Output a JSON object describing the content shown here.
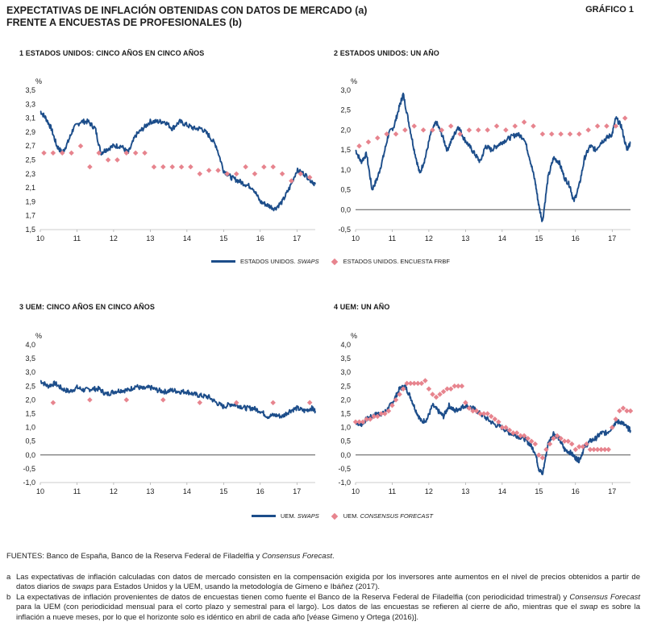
{
  "header": {
    "title_line1": "EXPECTATIVAS DE INFLACIÓN OBTENIDAS CON DATOS DE MERCADO (a)",
    "title_line2": "FRENTE A ENCUESTAS DE PROFESIONALES (b)",
    "figure_label": "GRÁFICO 1"
  },
  "colors": {
    "swaps": "#1c4d8a",
    "survey": "#e7848e",
    "zero_line": "#555555"
  },
  "legend_top": {
    "swaps_label": "ESTADOS UNIDOS. ",
    "swaps_italic": "SWAPS",
    "survey_label": "ESTADOS UNIDOS. ENCUESTA FRBF"
  },
  "legend_bottom": {
    "swaps_label": "UEM. ",
    "swaps_italic": "SWAPS",
    "survey_label": "UEM. ",
    "survey_italic": "CONSENSUS FORECAST"
  },
  "chart_data": [
    {
      "type": "line",
      "title": "1  ESTADOS UNIDOS: CINCO AÑOS EN CINCO AÑOS",
      "ylabel": "%",
      "ylim": [
        1.5,
        3.5
      ],
      "yticks": [
        1.5,
        1.7,
        1.9,
        2.1,
        2.3,
        2.5,
        2.7,
        2.9,
        3.1,
        3.3,
        3.5
      ],
      "xlim": [
        2010,
        2017.5
      ],
      "xticks": [
        "10",
        "11",
        "12",
        "13",
        "14",
        "15",
        "16",
        "17"
      ],
      "series": [
        {
          "name": "ESTADOS UNIDOS. SWAPS",
          "kind": "line",
          "x": [
            2010.0,
            2010.15,
            2010.3,
            2010.45,
            2010.6,
            2010.75,
            2010.9,
            2011.1,
            2011.3,
            2011.5,
            2011.65,
            2011.8,
            2012.0,
            2012.2,
            2012.4,
            2012.6,
            2012.8,
            2013.0,
            2013.2,
            2013.4,
            2013.6,
            2013.8,
            2014.0,
            2014.2,
            2014.4,
            2014.6,
            2014.8,
            2015.0,
            2015.2,
            2015.4,
            2015.6,
            2015.8,
            2016.0,
            2016.2,
            2016.4,
            2016.6,
            2016.8,
            2017.0,
            2017.2,
            2017.4,
            2017.5
          ],
          "y": [
            3.2,
            3.1,
            2.95,
            2.7,
            2.6,
            2.75,
            2.95,
            3.05,
            3.05,
            2.95,
            2.6,
            2.65,
            2.7,
            2.7,
            2.6,
            2.85,
            2.95,
            3.05,
            3.05,
            3.05,
            2.95,
            3.05,
            3.0,
            2.95,
            2.95,
            2.85,
            2.7,
            2.35,
            2.25,
            2.2,
            2.15,
            2.1,
            1.9,
            1.85,
            1.8,
            1.9,
            2.1,
            2.35,
            2.3,
            2.2,
            2.15
          ]
        },
        {
          "name": "ESTADOS UNIDOS. ENCUESTA FRBF",
          "kind": "points",
          "x": [
            2010.1,
            2010.35,
            2010.6,
            2010.85,
            2011.1,
            2011.35,
            2011.6,
            2011.85,
            2012.1,
            2012.35,
            2012.6,
            2012.85,
            2013.1,
            2013.35,
            2013.6,
            2013.85,
            2014.1,
            2014.35,
            2014.6,
            2014.85,
            2015.1,
            2015.35,
            2015.6,
            2015.85,
            2016.1,
            2016.35,
            2016.6,
            2016.85,
            2017.1,
            2017.35
          ],
          "y": [
            2.6,
            2.6,
            2.6,
            2.6,
            2.7,
            2.4,
            2.6,
            2.5,
            2.5,
            2.6,
            2.6,
            2.6,
            2.4,
            2.4,
            2.4,
            2.4,
            2.4,
            2.3,
            2.35,
            2.35,
            2.3,
            2.3,
            2.4,
            2.3,
            2.4,
            2.4,
            2.3,
            2.2,
            2.3,
            2.25
          ]
        }
      ]
    },
    {
      "type": "line",
      "title": "2  ESTADOS UNIDOS: UN AÑO",
      "ylabel": "%",
      "ylim": [
        -0.5,
        3.0
      ],
      "yticks": [
        -0.5,
        0.0,
        0.5,
        1.0,
        1.5,
        2.0,
        2.5,
        3.0
      ],
      "xlim": [
        2010,
        2017.5
      ],
      "xticks": [
        "10",
        "11",
        "12",
        "13",
        "14",
        "15",
        "16",
        "17"
      ],
      "series": [
        {
          "name": "ESTADOS UNIDOS. SWAPS",
          "kind": "line",
          "x": [
            2010.0,
            2010.15,
            2010.3,
            2010.45,
            2010.6,
            2010.75,
            2010.9,
            2011.05,
            2011.2,
            2011.3,
            2011.45,
            2011.6,
            2011.75,
            2011.9,
            2012.05,
            2012.2,
            2012.35,
            2012.5,
            2012.65,
            2012.8,
            2012.95,
            2013.1,
            2013.25,
            2013.4,
            2013.55,
            2013.7,
            2013.85,
            2014.0,
            2014.2,
            2014.4,
            2014.6,
            2014.75,
            2014.9,
            2015.0,
            2015.1,
            2015.25,
            2015.4,
            2015.55,
            2015.7,
            2015.85,
            2015.95,
            2016.1,
            2016.25,
            2016.4,
            2016.55,
            2016.7,
            2016.85,
            2017.0,
            2017.1,
            2017.25,
            2017.4,
            2017.5
          ],
          "y": [
            1.5,
            1.2,
            1.4,
            0.5,
            0.8,
            1.3,
            1.9,
            2.1,
            2.6,
            2.9,
            2.2,
            1.5,
            0.9,
            1.3,
            1.9,
            2.2,
            1.9,
            1.5,
            1.8,
            2.1,
            1.8,
            1.6,
            1.4,
            1.2,
            1.6,
            1.5,
            1.6,
            1.7,
            1.8,
            1.9,
            1.8,
            1.3,
            0.7,
            0.1,
            -0.3,
            0.8,
            1.3,
            1.2,
            0.8,
            0.6,
            0.2,
            0.6,
            1.3,
            1.6,
            1.5,
            1.7,
            1.8,
            1.9,
            2.3,
            2.1,
            1.5,
            1.7
          ]
        },
        {
          "name": "ESTADOS UNIDOS. ENCUESTA FRBF",
          "kind": "points",
          "x": [
            2010.1,
            2010.35,
            2010.6,
            2010.85,
            2011.1,
            2011.35,
            2011.6,
            2011.85,
            2012.1,
            2012.35,
            2012.6,
            2012.85,
            2013.1,
            2013.35,
            2013.6,
            2013.85,
            2014.1,
            2014.35,
            2014.6,
            2014.85,
            2015.1,
            2015.35,
            2015.6,
            2015.85,
            2016.1,
            2016.35,
            2016.6,
            2016.85,
            2017.1,
            2017.35
          ],
          "y": [
            1.6,
            1.7,
            1.8,
            1.9,
            1.9,
            2.0,
            2.1,
            2.0,
            2.0,
            2.0,
            2.1,
            1.9,
            2.0,
            2.0,
            2.0,
            2.1,
            2.0,
            2.1,
            2.2,
            2.1,
            1.9,
            1.9,
            1.9,
            1.9,
            1.9,
            2.0,
            2.1,
            2.1,
            2.1,
            2.3
          ]
        }
      ]
    },
    {
      "type": "line",
      "title": "3  UEM: CINCO AÑOS EN CINCO AÑOS",
      "ylabel": "%",
      "ylim": [
        -1.0,
        4.0
      ],
      "yticks": [
        -1.0,
        -0.5,
        0.0,
        0.5,
        1.0,
        1.5,
        2.0,
        2.5,
        3.0,
        3.5,
        4.0
      ],
      "xlim": [
        2010,
        2017.5
      ],
      "xticks": [
        "10",
        "11",
        "12",
        "13",
        "14",
        "15",
        "16",
        "17"
      ],
      "series": [
        {
          "name": "UEM. SWAPS",
          "kind": "line",
          "x": [
            2010.0,
            2010.2,
            2010.4,
            2010.6,
            2010.8,
            2011.0,
            2011.2,
            2011.4,
            2011.6,
            2011.8,
            2012.0,
            2012.2,
            2012.4,
            2012.6,
            2012.8,
            2013.0,
            2013.2,
            2013.4,
            2013.6,
            2013.8,
            2014.0,
            2014.2,
            2014.4,
            2014.6,
            2014.8,
            2015.0,
            2015.2,
            2015.4,
            2015.6,
            2015.8,
            2016.0,
            2016.2,
            2016.4,
            2016.6,
            2016.8,
            2017.0,
            2017.2,
            2017.4,
            2017.5
          ],
          "y": [
            2.7,
            2.5,
            2.6,
            2.4,
            2.3,
            2.45,
            2.35,
            2.4,
            2.4,
            2.2,
            2.3,
            2.35,
            2.35,
            2.5,
            2.4,
            2.45,
            2.35,
            2.3,
            2.35,
            2.3,
            2.3,
            2.2,
            2.15,
            2.1,
            1.9,
            1.75,
            1.85,
            1.8,
            1.7,
            1.7,
            1.6,
            1.4,
            1.45,
            1.4,
            1.6,
            1.7,
            1.6,
            1.7,
            1.6
          ]
        },
        {
          "name": "UEM. CONSENSUS FORECAST",
          "kind": "points",
          "x": [
            2010.35,
            2011.35,
            2012.35,
            2013.35,
            2014.35,
            2015.35,
            2016.35,
            2017.35
          ],
          "y": [
            1.9,
            2.0,
            2.0,
            2.0,
            1.9,
            1.9,
            1.9,
            1.9
          ]
        }
      ]
    },
    {
      "type": "line",
      "title": "4  UEM: UN AÑO",
      "ylabel": "%",
      "ylim": [
        -1.0,
        4.0
      ],
      "yticks": [
        -1.0,
        -0.5,
        0.0,
        0.5,
        1.0,
        1.5,
        2.0,
        2.5,
        3.0,
        3.5,
        4.0
      ],
      "xlim": [
        2010,
        2017.5
      ],
      "xticks": [
        "10",
        "11",
        "12",
        "13",
        "14",
        "15",
        "16",
        "17"
      ],
      "series": [
        {
          "name": "UEM. SWAPS",
          "kind": "line",
          "x": [
            2010.0,
            2010.15,
            2010.3,
            2010.45,
            2010.6,
            2010.75,
            2010.9,
            2011.05,
            2011.2,
            2011.35,
            2011.5,
            2011.65,
            2011.8,
            2011.95,
            2012.1,
            2012.25,
            2012.4,
            2012.55,
            2012.7,
            2012.85,
            2013.0,
            2013.2,
            2013.4,
            2013.6,
            2013.8,
            2014.0,
            2014.2,
            2014.4,
            2014.6,
            2014.75,
            2014.9,
            2015.0,
            2015.1,
            2015.25,
            2015.4,
            2015.55,
            2015.7,
            2015.85,
            2016.0,
            2016.1,
            2016.25,
            2016.4,
            2016.55,
            2016.7,
            2016.85,
            2017.0,
            2017.1,
            2017.25,
            2017.4,
            2017.5
          ],
          "y": [
            1.2,
            1.1,
            1.3,
            1.4,
            1.5,
            1.5,
            1.7,
            2.0,
            2.4,
            2.5,
            2.1,
            1.6,
            1.2,
            1.3,
            1.8,
            1.6,
            1.4,
            1.8,
            1.6,
            1.7,
            1.8,
            1.7,
            1.5,
            1.3,
            1.1,
            1.0,
            0.8,
            0.7,
            0.6,
            0.4,
            0.1,
            -0.5,
            -0.7,
            0.4,
            0.8,
            0.6,
            0.2,
            0.1,
            -0.1,
            -0.2,
            0.3,
            0.5,
            0.6,
            0.8,
            0.8,
            1.0,
            1.2,
            1.2,
            1.0,
            0.9
          ]
        },
        {
          "name": "UEM. CONSENSUS FORECAST",
          "kind": "points",
          "x": [
            2010.0,
            2010.1,
            2010.2,
            2010.3,
            2010.4,
            2010.5,
            2010.6,
            2010.7,
            2010.8,
            2010.9,
            2011.0,
            2011.1,
            2011.2,
            2011.3,
            2011.4,
            2011.5,
            2011.6,
            2011.7,
            2011.8,
            2011.9,
            2012.0,
            2012.1,
            2012.2,
            2012.3,
            2012.4,
            2012.5,
            2012.6,
            2012.7,
            2012.8,
            2012.9,
            2013.0,
            2013.1,
            2013.2,
            2013.3,
            2013.4,
            2013.5,
            2013.6,
            2013.7,
            2013.8,
            2013.9,
            2014.0,
            2014.1,
            2014.2,
            2014.3,
            2014.4,
            2014.5,
            2014.6,
            2014.7,
            2014.8,
            2014.9,
            2015.0,
            2015.1,
            2015.2,
            2015.3,
            2015.4,
            2015.5,
            2015.6,
            2015.7,
            2015.8,
            2015.9,
            2016.0,
            2016.1,
            2016.2,
            2016.3,
            2016.4,
            2016.5,
            2016.6,
            2016.7,
            2016.8,
            2016.9,
            2017.0,
            2017.1,
            2017.2,
            2017.3,
            2017.4,
            2017.5
          ],
          "y": [
            1.2,
            1.2,
            1.2,
            1.3,
            1.3,
            1.4,
            1.4,
            1.5,
            1.5,
            1.6,
            1.8,
            2.0,
            2.2,
            2.4,
            2.6,
            2.6,
            2.6,
            2.6,
            2.6,
            2.7,
            2.4,
            2.2,
            2.1,
            2.2,
            2.3,
            2.4,
            2.4,
            2.5,
            2.5,
            2.5,
            1.9,
            1.7,
            1.6,
            1.6,
            1.5,
            1.5,
            1.5,
            1.4,
            1.3,
            1.2,
            1.0,
            1.0,
            0.9,
            0.8,
            0.8,
            0.7,
            0.7,
            0.6,
            0.5,
            0.4,
            0.0,
            -0.1,
            0.2,
            0.4,
            0.6,
            0.7,
            0.6,
            0.5,
            0.5,
            0.4,
            0.2,
            0.3,
            0.3,
            0.4,
            0.2,
            0.2,
            0.2,
            0.2,
            0.2,
            0.2,
            1.0,
            1.3,
            1.6,
            1.7,
            1.6,
            1.6
          ]
        }
      ]
    }
  ],
  "notes": {
    "sources_prefix": "FUENTES: Banco de España, Banco de la Reserva Federal de Filadelfia y ",
    "sources_italic": "Consensus Forecast",
    "sources_suffix": ".",
    "a_marker": "a",
    "a_text_1": "Las expectativas de inflación calculadas con datos de mercado consisten en la compensación exigida por los inversores ante aumentos en el nivel de precios obtenidos a partir de datos diarios de ",
    "a_text_italic": "swaps",
    "a_text_2": " para Estados Unidos y la UEM, usando la metodología de Gimeno e Ibáñez (2017).",
    "b_marker": "b",
    "b_text_1": "La expectativas de inflación provenientes de datos de encuestas tienen como fuente el Banco de la Reserva Federal de Filadelfia (con periodicidad trimestral) y ",
    "b_text_italic1": "Consensus Forecast",
    "b_text_2": " para la UEM (con periodicidad mensual para el corto plazo y semestral para el largo). Los datos de las encuestas se refieren al cierre de año, mientras que el ",
    "b_text_italic2": "swap",
    "b_text_3": " es sobre la inflación a nueve meses, por lo que el horizonte solo es idéntico en abril de cada año [véase Gimeno y Ortega  (2016)]."
  }
}
